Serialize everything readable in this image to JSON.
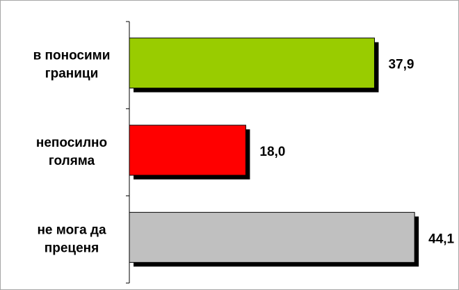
{
  "chart_data": {
    "type": "bar",
    "orientation": "horizontal",
    "categories": [
      [
        "в поносими",
        "граници"
      ],
      [
        "непосилно",
        "голяма"
      ],
      [
        "не мога да",
        "преценя"
      ]
    ],
    "values": [
      37.9,
      18.0,
      44.1
    ],
    "value_labels": [
      "37,9",
      "18,0",
      "44,1"
    ],
    "bar_colors": [
      "#99cc00",
      "#ff0000",
      "#c0c0c0"
    ],
    "shadow_color": "#000000",
    "xlim": [
      0,
      50
    ],
    "grid": false,
    "legend": "none"
  }
}
